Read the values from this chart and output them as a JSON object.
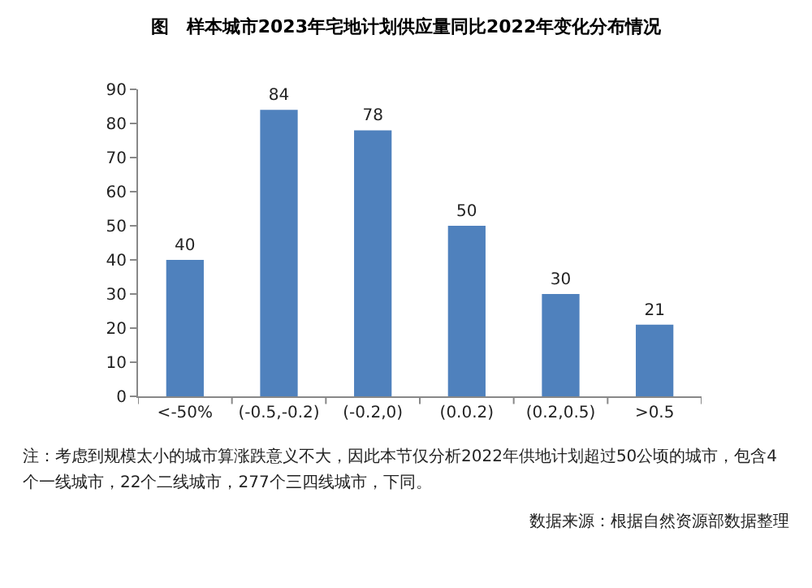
{
  "chart_data": {
    "type": "bar",
    "title": "图　样本城市2023年宅地计划供应量同比2022年变化分布情况",
    "categories": [
      "<-50%",
      "(-0.5,-0.2)",
      "(-0.2,0)",
      "(0.0.2)",
      "(0.2,0.5)",
      ">0.5"
    ],
    "values": [
      40,
      84,
      78,
      50,
      30,
      21
    ],
    "color": "#4f81bd",
    "data_labels": true,
    "ylim": [
      0,
      90
    ],
    "yticks": [
      0,
      10,
      20,
      30,
      40,
      50,
      60,
      70,
      80,
      90
    ],
    "annotations": [
      "注：考虑到规模太小的城市算涨跌意义不大，因此本节仅分析2022年供地计划超过50公顷的城市，包含4个一线城市，22个二线城市，277个三四线城市，下同。",
      "数据来源：根据自然资源部数据整理"
    ]
  }
}
